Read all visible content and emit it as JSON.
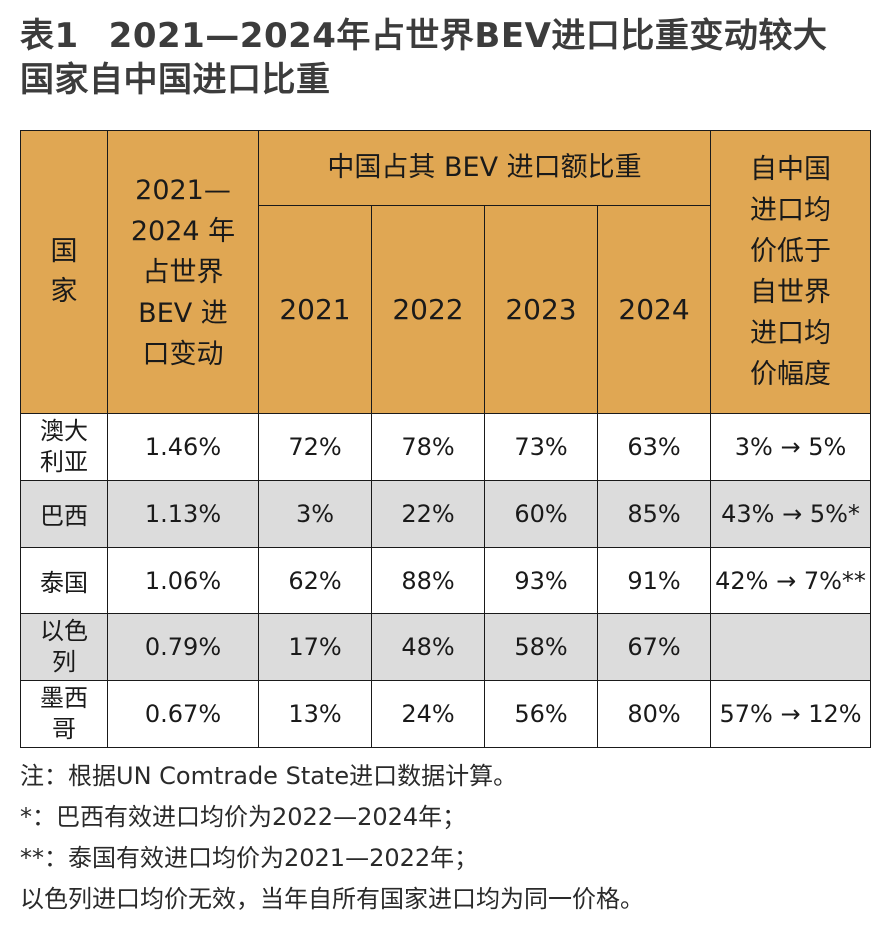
{
  "title": {
    "tag": "表1",
    "line1": "2021—2024年占世界BEV进口比重变动较大",
    "line2": "国家自中国进口比重"
  },
  "table": {
    "header": {
      "country": "国家",
      "change": "2021—2024 年占世界 BEV 进口变动",
      "china_share": "中国占其 BEV 进口额比重",
      "years": [
        "2021",
        "2022",
        "2023",
        "2024"
      ],
      "price": "自中国进口均价低于自世界进口均价幅度"
    },
    "rows": [
      {
        "country": "澳大利亚",
        "change": "1.46%",
        "y2021": "72%",
        "y2022": "78%",
        "y2023": "73%",
        "y2024": "63%",
        "price": "3% → 5%"
      },
      {
        "country": "巴西",
        "change": "1.13%",
        "y2021": "3%",
        "y2022": "22%",
        "y2023": "60%",
        "y2024": "85%",
        "price": "43% → 5%*"
      },
      {
        "country": "泰国",
        "change": "1.06%",
        "y2021": "62%",
        "y2022": "88%",
        "y2023": "93%",
        "y2024": "91%",
        "price": "42% → 7%**"
      },
      {
        "country": "以色列",
        "change": "0.79%",
        "y2021": "17%",
        "y2022": "48%",
        "y2023": "58%",
        "y2024": "67%",
        "price": ""
      },
      {
        "country": "墨西哥",
        "change": "0.67%",
        "y2021": "13%",
        "y2022": "24%",
        "y2023": "56%",
        "y2024": "80%",
        "price": "57% → 12%"
      }
    ]
  },
  "notes": [
    "注：根据UN Comtrade State进口数据计算。",
    "*：巴西有效进口均价为2022—2024年；",
    "**：泰国有效进口均价为2021—2022年；",
    "以色列进口均价无效，当年自所有国家进口均为同一价格。"
  ],
  "colors": {
    "header_bg": "#e0a753",
    "shade_bg": "#dcdcdc"
  }
}
